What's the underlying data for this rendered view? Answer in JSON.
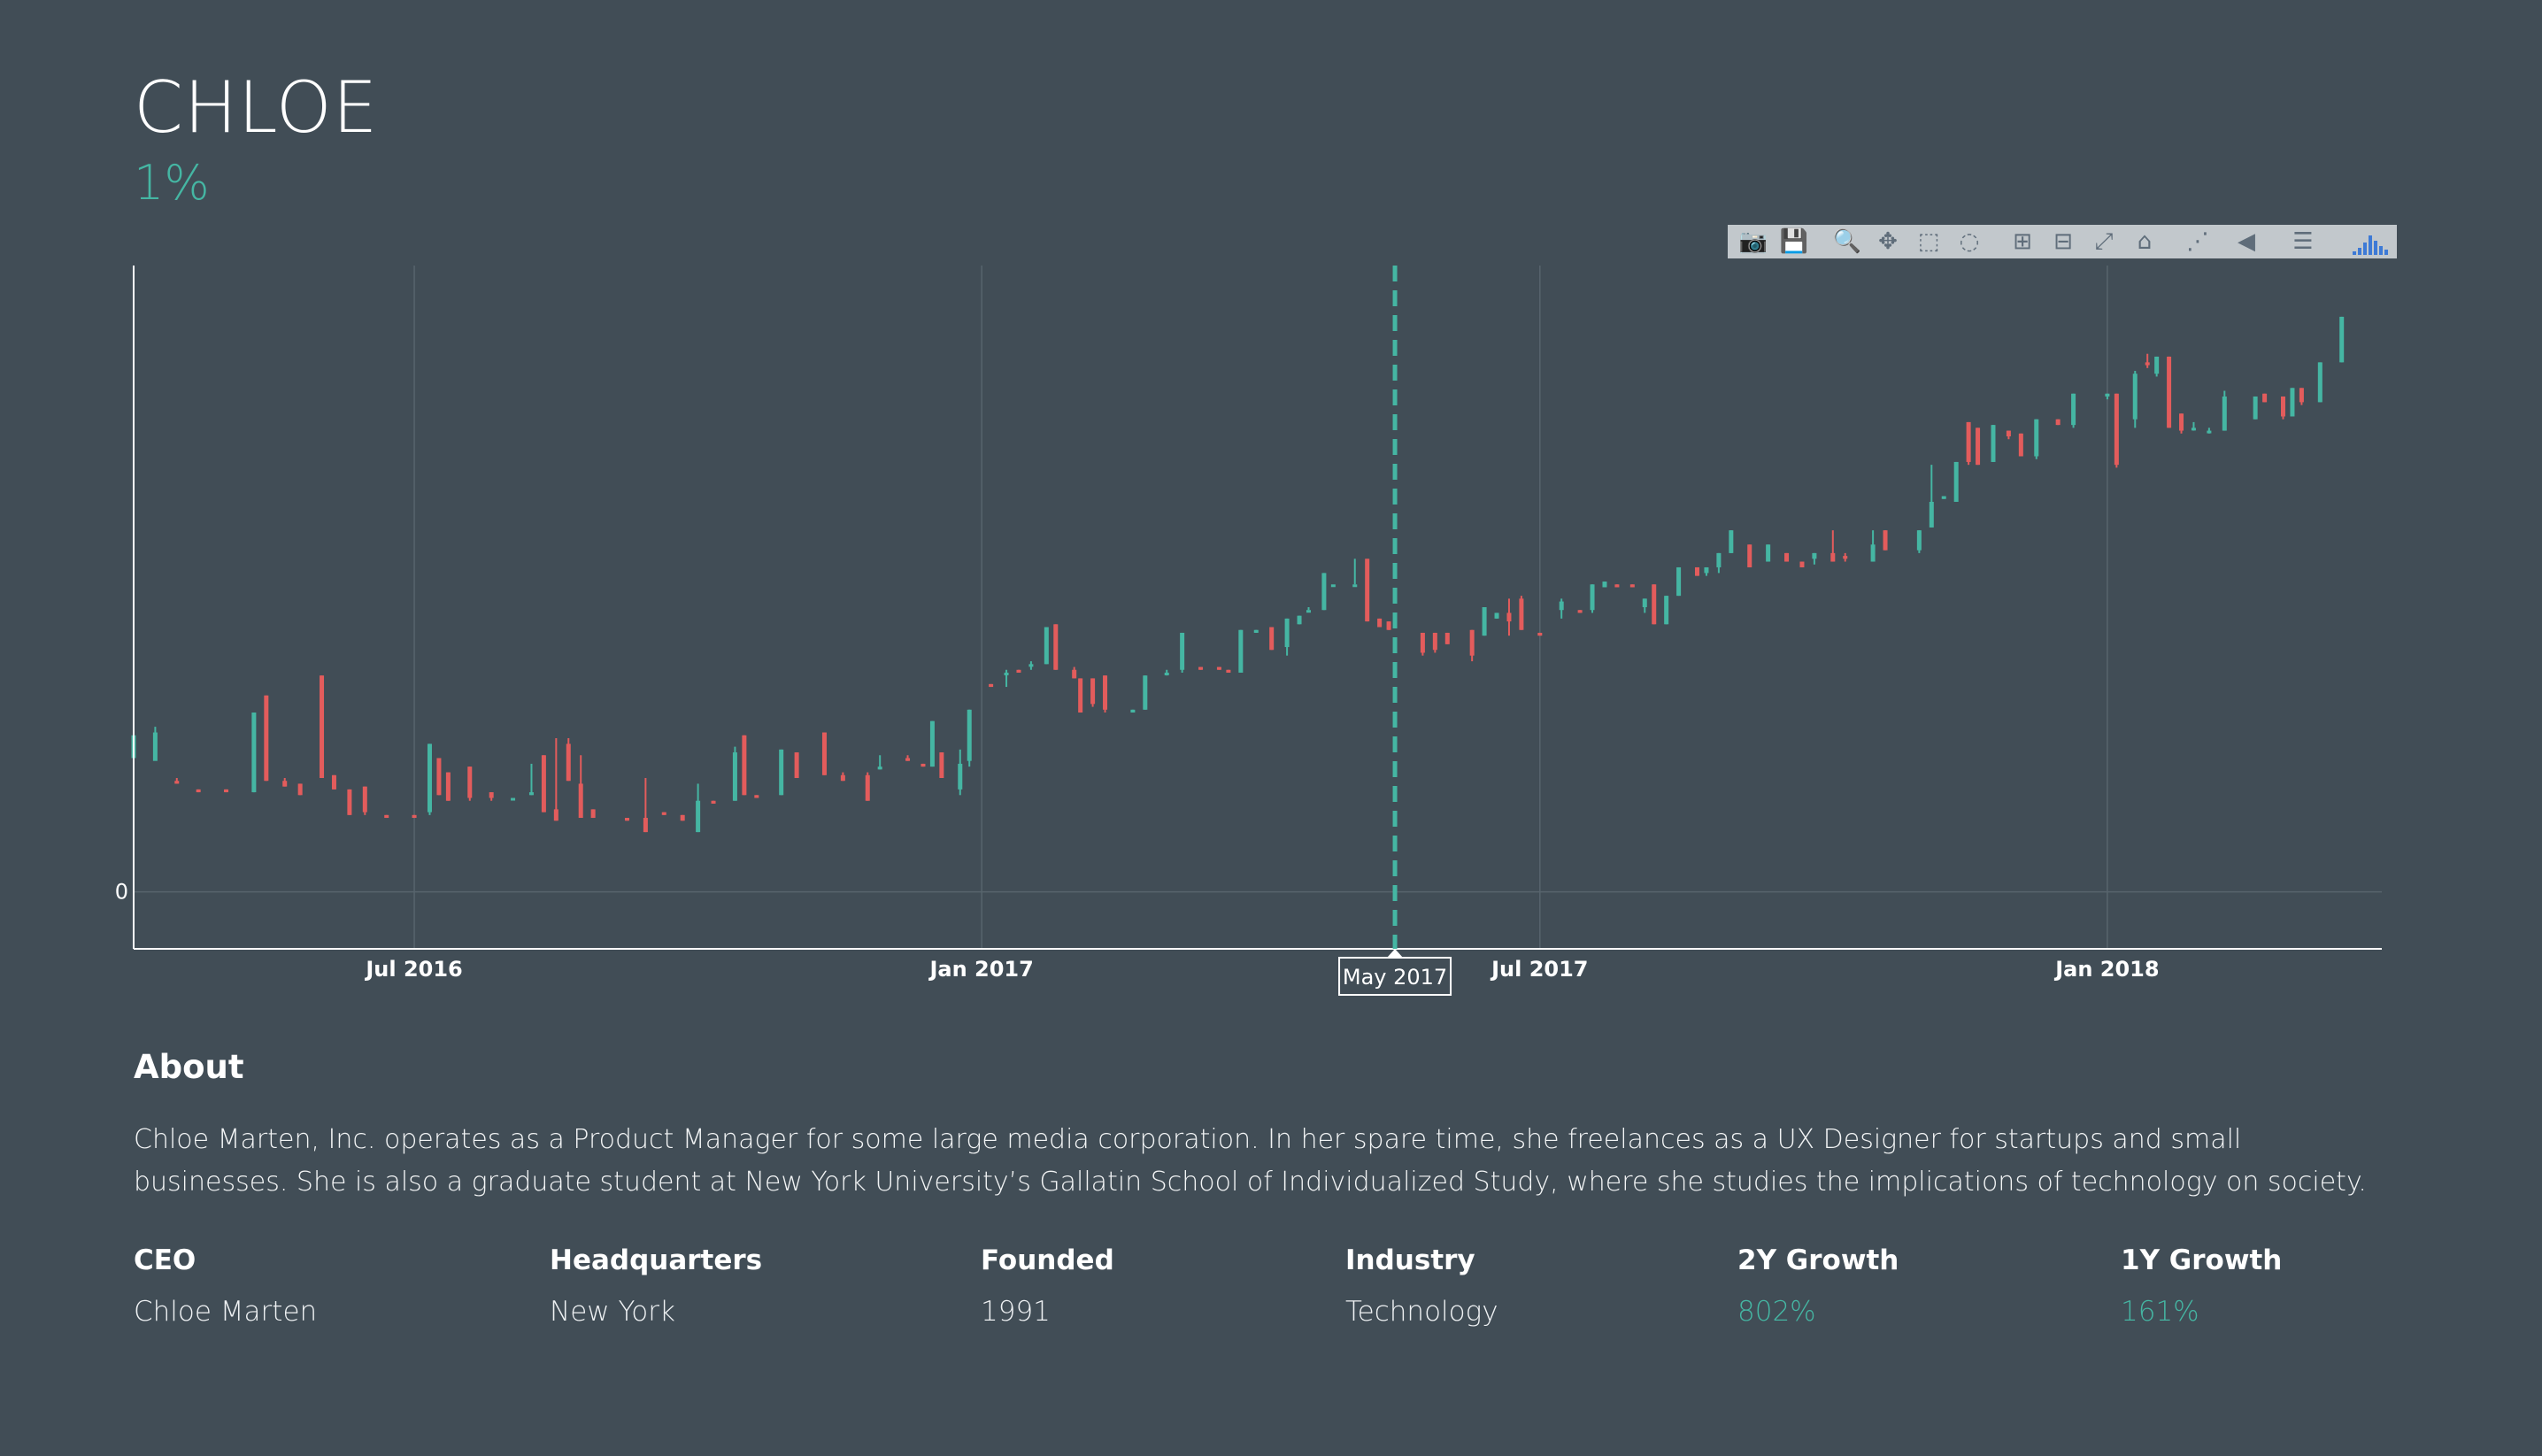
{
  "header": {
    "title": "CHLOE",
    "growth": "1%"
  },
  "toolbar": {
    "buttons": [
      {
        "name": "camera-icon",
        "glyph": "📷"
      },
      {
        "name": "save-icon",
        "glyph": "💾"
      },
      {
        "name": "zoom-icon",
        "glyph": "🔍"
      },
      {
        "name": "pan-icon",
        "glyph": "✥"
      },
      {
        "name": "box-select-icon",
        "glyph": "⬚"
      },
      {
        "name": "lasso-select-icon",
        "glyph": "◌"
      },
      {
        "name": "zoom-in-icon",
        "glyph": "⊞"
      },
      {
        "name": "zoom-out-icon",
        "glyph": "⊟"
      },
      {
        "name": "autoscale-icon",
        "glyph": "⤢"
      },
      {
        "name": "reset-axes-icon",
        "glyph": "⌂"
      },
      {
        "name": "spike-lines-icon",
        "glyph": "⋰"
      },
      {
        "name": "hover-closest-icon",
        "glyph": "◀"
      },
      {
        "name": "hover-compare-icon",
        "glyph": "☰"
      }
    ],
    "logo": "plotly-logo-icon"
  },
  "chart_data": {
    "type": "candlestick",
    "x_ticks": [
      "Jul 2016",
      "Jan 2017",
      "Jul 2017",
      "Jan 2018"
    ],
    "y_ticks": [
      "0"
    ],
    "hover_label": "May 2017",
    "colors": {
      "up": "#45b6a3",
      "down": "#e35c5c",
      "spike": "#45b6a3",
      "grid": "#57646d"
    },
    "grid": true,
    "x_range": [
      "2016-04-01",
      "2018-03-31"
    ],
    "y_range": [
      -2,
      22
    ],
    "hover_x": "2017-05-15",
    "candles": [
      {
        "x": "2016-04-01",
        "o": 4.7,
        "h": 7.5,
        "l": 4.7,
        "c": 5.5
      },
      {
        "x": "2016-04-08",
        "o": 4.6,
        "h": 5.8,
        "l": 4.8,
        "c": 5.6
      },
      {
        "x": "2016-04-15",
        "o": 3.9,
        "h": 4.0,
        "l": 3.8,
        "c": 3.8
      },
      {
        "x": "2016-04-22",
        "o": 3.6,
        "h": 3.6,
        "l": 3.5,
        "c": 3.5
      },
      {
        "x": "2016-05-01",
        "o": 3.6,
        "h": 3.6,
        "l": 3.5,
        "c": 3.5
      },
      {
        "x": "2016-05-10",
        "o": 3.5,
        "h": 6.3,
        "l": 3.5,
        "c": 6.3
      },
      {
        "x": "2016-05-14",
        "o": 6.9,
        "h": 6.9,
        "l": 3.9,
        "c": 3.9
      },
      {
        "x": "2016-05-20",
        "o": 3.9,
        "h": 4.0,
        "l": 3.7,
        "c": 3.7
      },
      {
        "x": "2016-05-25",
        "o": 3.8,
        "h": 3.8,
        "l": 3.4,
        "c": 3.4
      },
      {
        "x": "2016-06-01",
        "o": 7.6,
        "h": 7.6,
        "l": 4.0,
        "c": 4.0
      },
      {
        "x": "2016-06-05",
        "o": 4.1,
        "h": 4.1,
        "l": 3.6,
        "c": 3.6
      },
      {
        "x": "2016-06-10",
        "o": 3.6,
        "h": 3.6,
        "l": 2.7,
        "c": 2.7
      },
      {
        "x": "2016-06-15",
        "o": 3.7,
        "h": 3.7,
        "l": 2.7,
        "c": 2.8
      },
      {
        "x": "2016-06-22",
        "o": 2.7,
        "h": 2.7,
        "l": 2.6,
        "c": 2.6
      },
      {
        "x": "2016-07-01",
        "o": 2.7,
        "h": 2.7,
        "l": 2.6,
        "c": 2.6
      },
      {
        "x": "2016-07-06",
        "o": 2.8,
        "h": 5.2,
        "l": 2.7,
        "c": 5.2
      },
      {
        "x": "2016-07-09",
        "o": 4.7,
        "h": 4.7,
        "l": 3.4,
        "c": 3.4
      },
      {
        "x": "2016-07-12",
        "o": 4.2,
        "h": 4.2,
        "l": 3.2,
        "c": 3.2
      },
      {
        "x": "2016-07-19",
        "o": 4.4,
        "h": 4.4,
        "l": 3.2,
        "c": 3.3
      },
      {
        "x": "2016-07-26",
        "o": 3.5,
        "h": 3.5,
        "l": 3.2,
        "c": 3.3
      },
      {
        "x": "2016-08-02",
        "o": 3.3,
        "h": 3.3,
        "l": 3.3,
        "c": 3.3
      },
      {
        "x": "2016-08-08",
        "o": 3.4,
        "h": 4.5,
        "l": 3.4,
        "c": 3.5
      },
      {
        "x": "2016-08-12",
        "o": 4.8,
        "h": 4.8,
        "l": 2.8,
        "c": 2.8
      },
      {
        "x": "2016-08-16",
        "o": 2.9,
        "h": 5.4,
        "l": 2.5,
        "c": 2.5
      },
      {
        "x": "2016-08-20",
        "o": 5.2,
        "h": 5.4,
        "l": 3.9,
        "c": 3.9
      },
      {
        "x": "2016-08-24",
        "o": 3.8,
        "h": 4.8,
        "l": 2.6,
        "c": 2.6
      },
      {
        "x": "2016-08-28",
        "o": 2.9,
        "h": 2.9,
        "l": 2.6,
        "c": 2.6
      },
      {
        "x": "2016-09-08",
        "o": 2.6,
        "h": 2.6,
        "l": 2.5,
        "c": 2.5
      },
      {
        "x": "2016-09-14",
        "o": 2.6,
        "h": 4.0,
        "l": 2.1,
        "c": 2.1
      },
      {
        "x": "2016-09-20",
        "o": 2.8,
        "h": 2.8,
        "l": 2.7,
        "c": 2.7
      },
      {
        "x": "2016-09-26",
        "o": 2.7,
        "h": 2.7,
        "l": 2.5,
        "c": 2.5
      },
      {
        "x": "2016-10-01",
        "o": 2.1,
        "h": 3.8,
        "l": 2.1,
        "c": 3.2
      },
      {
        "x": "2016-10-06",
        "o": 3.2,
        "h": 3.2,
        "l": 3.1,
        "c": 3.1
      },
      {
        "x": "2016-10-13",
        "o": 3.2,
        "h": 5.1,
        "l": 3.2,
        "c": 4.9
      },
      {
        "x": "2016-10-16",
        "o": 5.5,
        "h": 5.5,
        "l": 3.4,
        "c": 3.4
      },
      {
        "x": "2016-10-20",
        "o": 3.4,
        "h": 3.4,
        "l": 3.3,
        "c": 3.3
      },
      {
        "x": "2016-10-28",
        "o": 3.4,
        "h": 5.0,
        "l": 3.4,
        "c": 5.0
      },
      {
        "x": "2016-11-02",
        "o": 4.9,
        "h": 4.9,
        "l": 4.0,
        "c": 4.0
      },
      {
        "x": "2016-11-11",
        "o": 5.6,
        "h": 5.6,
        "l": 4.1,
        "c": 4.1
      },
      {
        "x": "2016-11-17",
        "o": 4.1,
        "h": 4.2,
        "l": 3.9,
        "c": 3.9
      },
      {
        "x": "2016-11-25",
        "o": 4.1,
        "h": 4.2,
        "l": 3.2,
        "c": 3.2
      },
      {
        "x": "2016-11-29",
        "o": 4.3,
        "h": 4.8,
        "l": 4.3,
        "c": 4.4
      },
      {
        "x": "2016-12-08",
        "o": 4.7,
        "h": 4.8,
        "l": 4.6,
        "c": 4.6
      },
      {
        "x": "2016-12-13",
        "o": 4.5,
        "h": 4.5,
        "l": 4.4,
        "c": 4.4
      },
      {
        "x": "2016-12-16",
        "o": 4.4,
        "h": 6.0,
        "l": 4.4,
        "c": 6.0
      },
      {
        "x": "2016-12-19",
        "o": 4.9,
        "h": 4.9,
        "l": 4.0,
        "c": 4.0
      },
      {
        "x": "2016-12-25",
        "o": 3.6,
        "h": 5.0,
        "l": 3.4,
        "c": 4.5
      },
      {
        "x": "2016-12-28",
        "o": 4.6,
        "h": 6.4,
        "l": 4.4,
        "c": 6.4
      },
      {
        "x": "2017-01-04",
        "o": 7.3,
        "h": 7.3,
        "l": 7.2,
        "c": 7.2
      },
      {
        "x": "2017-01-09",
        "o": 7.7,
        "h": 7.8,
        "l": 7.2,
        "c": 7.7
      },
      {
        "x": "2017-01-13",
        "o": 7.8,
        "h": 7.8,
        "l": 7.7,
        "c": 7.7
      },
      {
        "x": "2017-01-17",
        "o": 8.0,
        "h": 8.1,
        "l": 7.8,
        "c": 8.0
      },
      {
        "x": "2017-01-22",
        "o": 8.0,
        "h": 9.3,
        "l": 8.0,
        "c": 9.3
      },
      {
        "x": "2017-01-25",
        "o": 9.4,
        "h": 9.4,
        "l": 7.8,
        "c": 7.8
      },
      {
        "x": "2017-01-31",
        "o": 7.8,
        "h": 7.9,
        "l": 7.5,
        "c": 7.5
      },
      {
        "x": "2017-02-02",
        "o": 7.5,
        "h": 7.5,
        "l": 6.3,
        "c": 6.3
      },
      {
        "x": "2017-02-06",
        "o": 7.5,
        "h": 7.5,
        "l": 6.5,
        "c": 6.6
      },
      {
        "x": "2017-02-10",
        "o": 7.6,
        "h": 7.6,
        "l": 6.3,
        "c": 6.4
      },
      {
        "x": "2017-02-19",
        "o": 6.3,
        "h": 6.4,
        "l": 6.3,
        "c": 6.4
      },
      {
        "x": "2017-02-23",
        "o": 6.4,
        "h": 7.6,
        "l": 6.4,
        "c": 7.6
      },
      {
        "x": "2017-03-02",
        "o": 7.7,
        "h": 7.8,
        "l": 7.6,
        "c": 7.7
      },
      {
        "x": "2017-03-07",
        "o": 7.8,
        "h": 9.1,
        "l": 7.7,
        "c": 9.1
      },
      {
        "x": "2017-03-13",
        "o": 7.9,
        "h": 7.9,
        "l": 7.8,
        "c": 7.8
      },
      {
        "x": "2017-03-19",
        "o": 7.9,
        "h": 7.9,
        "l": 7.8,
        "c": 7.8
      },
      {
        "x": "2017-03-22",
        "o": 7.8,
        "h": 7.8,
        "l": 7.7,
        "c": 7.7
      },
      {
        "x": "2017-03-26",
        "o": 7.7,
        "h": 9.2,
        "l": 7.7,
        "c": 9.2
      },
      {
        "x": "2017-03-31",
        "o": 9.1,
        "h": 9.2,
        "l": 9.1,
        "c": 9.2
      },
      {
        "x": "2017-04-05",
        "o": 9.3,
        "h": 9.3,
        "l": 8.5,
        "c": 8.5
      },
      {
        "x": "2017-04-10",
        "o": 8.6,
        "h": 9.6,
        "l": 8.3,
        "c": 9.6
      },
      {
        "x": "2017-04-14",
        "o": 9.4,
        "h": 9.7,
        "l": 9.4,
        "c": 9.7
      },
      {
        "x": "2017-04-17",
        "o": 9.9,
        "h": 10.0,
        "l": 9.9,
        "c": 9.9
      },
      {
        "x": "2017-04-22",
        "o": 9.9,
        "h": 11.2,
        "l": 9.9,
        "c": 11.2
      },
      {
        "x": "2017-04-25",
        "o": 10.8,
        "h": 10.8,
        "l": 10.8,
        "c": 10.8
      },
      {
        "x": "2017-05-02",
        "o": 10.8,
        "h": 11.7,
        "l": 10.8,
        "c": 10.8
      },
      {
        "x": "2017-05-06",
        "o": 11.7,
        "h": 11.7,
        "l": 9.5,
        "c": 9.5
      },
      {
        "x": "2017-05-10",
        "o": 9.6,
        "h": 9.6,
        "l": 9.3,
        "c": 9.3
      },
      {
        "x": "2017-05-13",
        "o": 9.5,
        "h": 9.5,
        "l": 9.2,
        "c": 9.2
      },
      {
        "x": "2017-05-24",
        "o": 9.1,
        "h": 9.1,
        "l": 8.3,
        "c": 8.4
      },
      {
        "x": "2017-05-28",
        "o": 9.1,
        "h": 9.1,
        "l": 8.4,
        "c": 8.5
      },
      {
        "x": "2017-06-01",
        "o": 9.1,
        "h": 9.1,
        "l": 8.7,
        "c": 8.7
      },
      {
        "x": "2017-06-09",
        "o": 9.2,
        "h": 9.2,
        "l": 8.1,
        "c": 8.3
      },
      {
        "x": "2017-06-13",
        "o": 9.0,
        "h": 10.0,
        "l": 9.0,
        "c": 10.0
      },
      {
        "x": "2017-06-17",
        "o": 9.6,
        "h": 9.8,
        "l": 9.6,
        "c": 9.8
      },
      {
        "x": "2017-06-21",
        "o": 9.8,
        "h": 10.3,
        "l": 9.0,
        "c": 9.5
      },
      {
        "x": "2017-06-25",
        "o": 10.3,
        "h": 10.4,
        "l": 9.2,
        "c": 9.2
      },
      {
        "x": "2017-07-01",
        "o": 9.1,
        "h": 9.1,
        "l": 9.0,
        "c": 9.0
      },
      {
        "x": "2017-07-08",
        "o": 9.9,
        "h": 10.3,
        "l": 9.6,
        "c": 10.2
      },
      {
        "x": "2017-07-14",
        "o": 9.9,
        "h": 9.9,
        "l": 9.8,
        "c": 9.8
      },
      {
        "x": "2017-07-18",
        "o": 9.9,
        "h": 10.8,
        "l": 9.8,
        "c": 10.8
      },
      {
        "x": "2017-07-22",
        "o": 10.7,
        "h": 10.9,
        "l": 10.7,
        "c": 10.9
      },
      {
        "x": "2017-07-26",
        "o": 10.8,
        "h": 10.8,
        "l": 10.7,
        "c": 10.7
      },
      {
        "x": "2017-07-31",
        "o": 10.8,
        "h": 10.8,
        "l": 10.7,
        "c": 10.7
      },
      {
        "x": "2017-08-04",
        "o": 10.0,
        "h": 10.3,
        "l": 9.8,
        "c": 10.3
      },
      {
        "x": "2017-08-07",
        "o": 10.8,
        "h": 10.8,
        "l": 9.4,
        "c": 9.4
      },
      {
        "x": "2017-08-11",
        "o": 9.4,
        "h": 10.4,
        "l": 9.4,
        "c": 10.4
      },
      {
        "x": "2017-08-15",
        "o": 10.4,
        "h": 11.4,
        "l": 10.4,
        "c": 11.4
      },
      {
        "x": "2017-08-21",
        "o": 11.4,
        "h": 11.4,
        "l": 11.1,
        "c": 11.1
      },
      {
        "x": "2017-08-24",
        "o": 11.2,
        "h": 11.4,
        "l": 11.1,
        "c": 11.4
      },
      {
        "x": "2017-08-28",
        "o": 11.4,
        "h": 11.9,
        "l": 11.2,
        "c": 11.9
      },
      {
        "x": "2017-09-01",
        "o": 11.9,
        "h": 12.7,
        "l": 11.9,
        "c": 12.7
      },
      {
        "x": "2017-09-07",
        "o": 12.2,
        "h": 12.2,
        "l": 11.4,
        "c": 11.4
      },
      {
        "x": "2017-09-13",
        "o": 11.6,
        "h": 12.2,
        "l": 11.6,
        "c": 12.2
      },
      {
        "x": "2017-09-19",
        "o": 11.9,
        "h": 11.9,
        "l": 11.6,
        "c": 11.6
      },
      {
        "x": "2017-09-24",
        "o": 11.6,
        "h": 11.6,
        "l": 11.4,
        "c": 11.4
      },
      {
        "x": "2017-09-28",
        "o": 11.7,
        "h": 11.9,
        "l": 11.5,
        "c": 11.9
      },
      {
        "x": "2017-10-04",
        "o": 11.9,
        "h": 12.7,
        "l": 11.6,
        "c": 11.6
      },
      {
        "x": "2017-10-08",
        "o": 11.8,
        "h": 11.9,
        "l": 11.6,
        "c": 11.7
      },
      {
        "x": "2017-10-17",
        "o": 11.6,
        "h": 12.7,
        "l": 11.6,
        "c": 12.2
      },
      {
        "x": "2017-10-21",
        "o": 12.7,
        "h": 12.7,
        "l": 12.0,
        "c": 12.0
      },
      {
        "x": "2017-11-01",
        "o": 12.0,
        "h": 12.7,
        "l": 11.9,
        "c": 12.7
      },
      {
        "x": "2017-11-05",
        "o": 12.8,
        "h": 15.0,
        "l": 12.8,
        "c": 13.7
      },
      {
        "x": "2017-11-09",
        "o": 13.8,
        "h": 13.9,
        "l": 13.8,
        "c": 13.9
      },
      {
        "x": "2017-11-13",
        "o": 13.7,
        "h": 15.1,
        "l": 13.7,
        "c": 15.1
      },
      {
        "x": "2017-11-17",
        "o": 16.5,
        "h": 16.5,
        "l": 15.0,
        "c": 15.1
      },
      {
        "x": "2017-11-20",
        "o": 16.3,
        "h": 16.3,
        "l": 15.0,
        "c": 15.0
      },
      {
        "x": "2017-11-25",
        "o": 15.1,
        "h": 16.4,
        "l": 15.1,
        "c": 16.4
      },
      {
        "x": "2017-11-30",
        "o": 16.2,
        "h": 16.2,
        "l": 15.9,
        "c": 16.0
      },
      {
        "x": "2017-12-04",
        "o": 16.1,
        "h": 16.1,
        "l": 15.3,
        "c": 15.3
      },
      {
        "x": "2017-12-09",
        "o": 15.3,
        "h": 16.6,
        "l": 15.2,
        "c": 16.6
      },
      {
        "x": "2017-12-16",
        "o": 16.6,
        "h": 16.6,
        "l": 16.4,
        "c": 16.4
      },
      {
        "x": "2017-12-21",
        "o": 16.4,
        "h": 17.5,
        "l": 16.3,
        "c": 17.5
      },
      {
        "x": "2018-01-01",
        "o": 17.4,
        "h": 17.5,
        "l": 17.3,
        "c": 17.5
      },
      {
        "x": "2018-01-04",
        "o": 17.5,
        "h": 17.5,
        "l": 14.9,
        "c": 15.0
      },
      {
        "x": "2018-01-10",
        "o": 16.6,
        "h": 18.3,
        "l": 16.3,
        "c": 18.2
      },
      {
        "x": "2018-01-14",
        "o": 18.6,
        "h": 18.9,
        "l": 18.4,
        "c": 18.5
      },
      {
        "x": "2018-01-17",
        "o": 18.2,
        "h": 18.8,
        "l": 18.1,
        "c": 18.8
      },
      {
        "x": "2018-01-21",
        "o": 18.8,
        "h": 18.8,
        "l": 16.3,
        "c": 16.3
      },
      {
        "x": "2018-01-25",
        "o": 16.8,
        "h": 16.8,
        "l": 16.1,
        "c": 16.2
      },
      {
        "x": "2018-01-29",
        "o": 16.3,
        "h": 16.5,
        "l": 16.2,
        "c": 16.3
      },
      {
        "x": "2018-02-03",
        "o": 16.2,
        "h": 16.3,
        "l": 16.1,
        "c": 16.2
      },
      {
        "x": "2018-02-08",
        "o": 16.2,
        "h": 17.6,
        "l": 16.2,
        "c": 17.4
      },
      {
        "x": "2018-02-18",
        "o": 16.6,
        "h": 17.4,
        "l": 16.6,
        "c": 17.4
      },
      {
        "x": "2018-02-21",
        "o": 17.5,
        "h": 17.5,
        "l": 17.2,
        "c": 17.2
      },
      {
        "x": "2018-02-27",
        "o": 17.4,
        "h": 17.4,
        "l": 16.6,
        "c": 16.7
      },
      {
        "x": "2018-03-02",
        "o": 16.7,
        "h": 17.7,
        "l": 16.7,
        "c": 17.7
      },
      {
        "x": "2018-03-05",
        "o": 17.7,
        "h": 17.7,
        "l": 17.1,
        "c": 17.2
      },
      {
        "x": "2018-03-11",
        "o": 17.2,
        "h": 18.6,
        "l": 17.2,
        "c": 18.6
      },
      {
        "x": "2018-03-18",
        "o": 18.6,
        "h": 20.2,
        "l": 18.6,
        "c": 20.2
      }
    ]
  },
  "about": {
    "heading": "About",
    "text": "Chloe Marten, Inc. operates as a Product Manager for some large media corporation. In her spare time, she freelances as a UX Designer for startups and small businesses. She is also a graduate student at New York University’s Gallatin School of Individualized Study, where she studies the implications of technology on society."
  },
  "stats": [
    {
      "label": "CEO",
      "value": "Chloe Marten",
      "accent": false
    },
    {
      "label": "Headquarters",
      "value": "New York",
      "accent": false
    },
    {
      "label": "Founded",
      "value": "1991",
      "accent": false
    },
    {
      "label": "Industry",
      "value": "Technology",
      "accent": false
    },
    {
      "label": "2Y Growth",
      "value": "802%",
      "accent": true
    },
    {
      "label": "1Y Growth",
      "value": "161%",
      "accent": true
    }
  ]
}
